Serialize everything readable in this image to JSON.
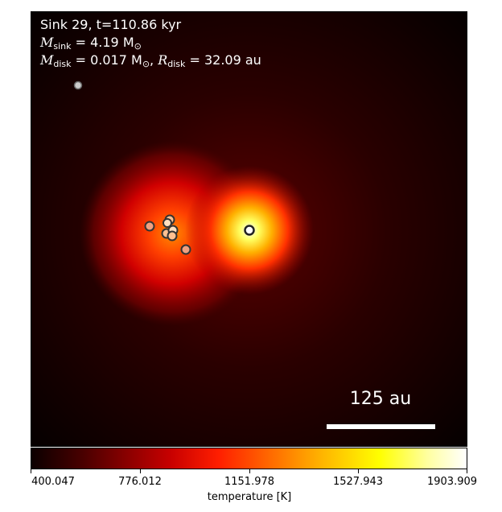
{
  "annotation": {
    "line1": "Sink 29, t=110.86 kyr",
    "sink_mass_label": "M",
    "sink_mass_sub": "sink",
    "sink_mass_value": " = 4.19 M",
    "sink_mass_unit_sub": "⊙",
    "disk_mass_label": "M",
    "disk_mass_sub": "disk",
    "disk_mass_value": " = 0.017 M",
    "disk_mass_unit_sub": "⊙",
    "disk_radius_sep": ",  ",
    "disk_radius_label": "R",
    "disk_radius_sub": "disk",
    "disk_radius_value": " = 32.09 au"
  },
  "scale_bar": {
    "label": "125 au"
  },
  "colorbar": {
    "title": "temperature [K]",
    "ticks": [
      "400.047",
      "776.012",
      "1151.978",
      "1527.943",
      "1903.909"
    ]
  },
  "colors": {
    "background": "#0b0000",
    "hot": "#ffff66",
    "marker_edge": "#333333"
  }
}
